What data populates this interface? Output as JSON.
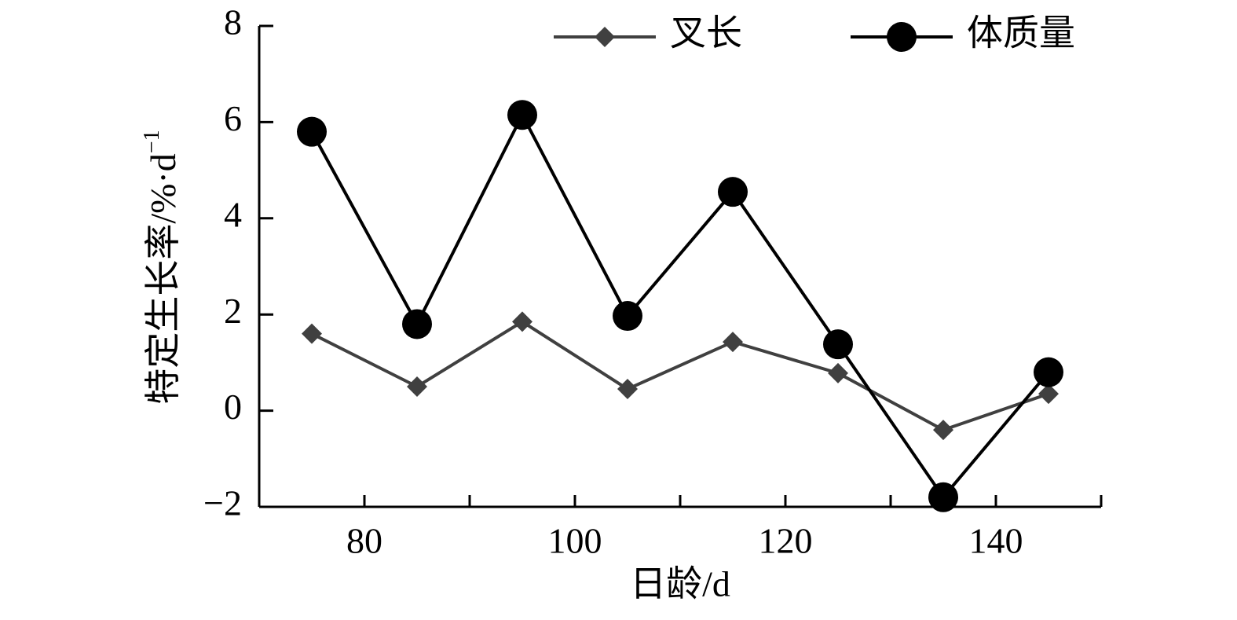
{
  "chart_data": {
    "type": "line",
    "x_label": "日龄/d",
    "y_label": "特定生长率/%·d",
    "y_label_sup": "−1",
    "x": [
      75,
      85,
      95,
      105,
      115,
      125,
      135,
      145
    ],
    "series": [
      {
        "name": "叉长",
        "color": "#404040",
        "marker": "diamond",
        "values": [
          1.6,
          0.5,
          1.85,
          0.45,
          1.43,
          0.78,
          -0.4,
          0.35
        ]
      },
      {
        "name": "体质量",
        "color": "#000000",
        "marker": "circle",
        "values": [
          5.8,
          1.8,
          6.15,
          1.97,
          4.55,
          1.38,
          -1.8,
          0.8
        ]
      }
    ],
    "xlim": [
      70,
      150
    ],
    "xticks": [
      80,
      100,
      120,
      140
    ],
    "xminor_ticks": [
      90,
      110,
      130,
      150
    ],
    "ylim": [
      -2,
      8
    ],
    "yticks": [
      {
        "value": -2,
        "label": "−2"
      },
      0,
      2,
      4,
      6,
      8
    ],
    "grid": false,
    "legend": "top"
  }
}
